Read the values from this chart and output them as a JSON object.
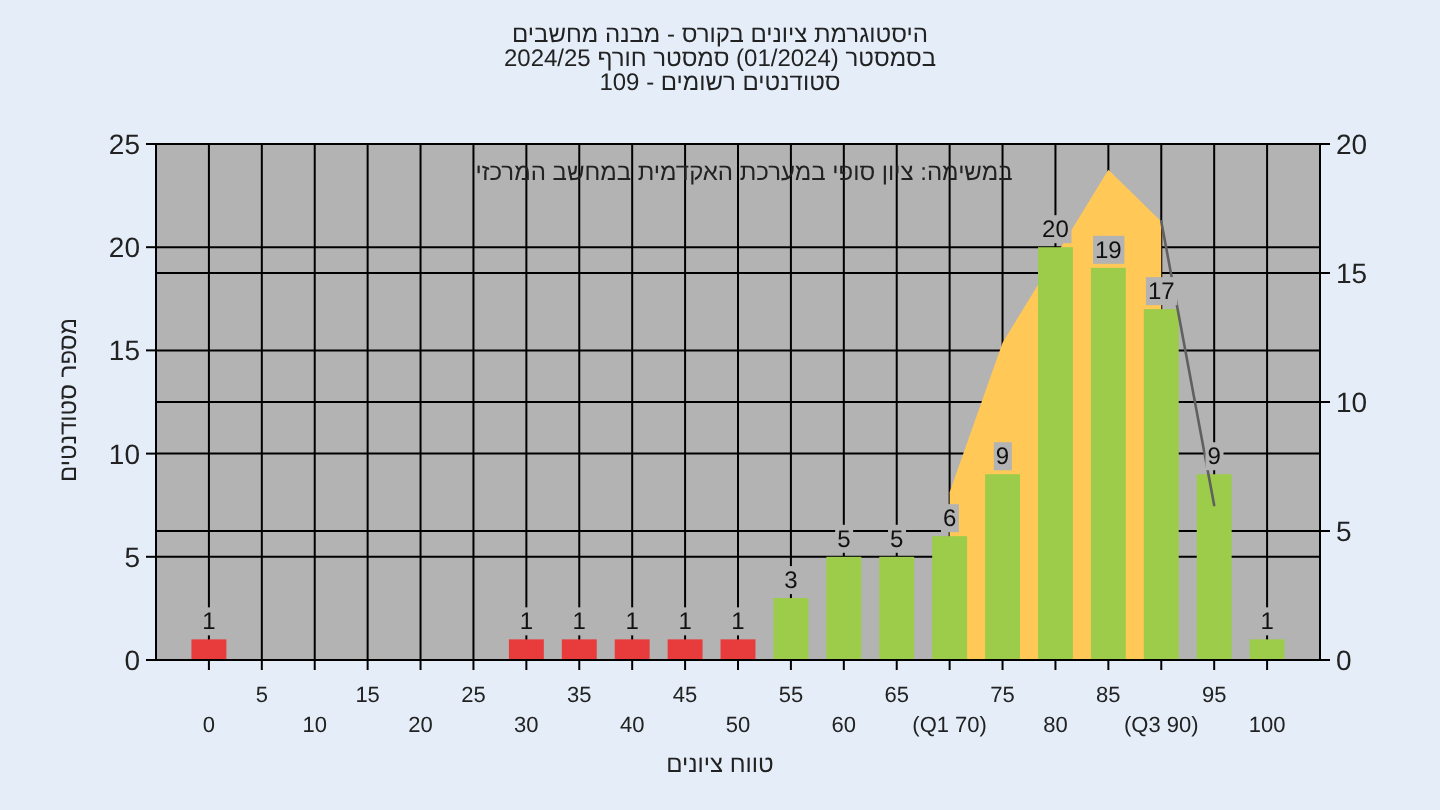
{
  "chart_data": {
    "type": "bar",
    "title": "היסטוגרמת ציונים בקורס - מבנה מחשבים",
    "subtitle": "בסמסטר  (01/2024)  סמסטר חורף 2024/25",
    "annotations": [
      "סטודנטים רשומים - 109",
      "במשימה: ציון סופי במערכת האקדמית במחשב המרכזי"
    ],
    "xlabel": "טווח ציונים",
    "ylabel": "מספר סטודנטים",
    "categories": [
      "0",
      "5",
      "10",
      "15",
      "20",
      "25",
      "30",
      "35",
      "40",
      "45",
      "50",
      "55",
      "60",
      "65",
      "(Q1 70)",
      "75",
      "80",
      "85",
      "(Q3 90)",
      "95",
      "100"
    ],
    "ylim": [
      0,
      25
    ],
    "yticks": [
      0,
      5,
      10,
      15,
      20,
      25
    ],
    "y2lim": [
      0,
      20
    ],
    "y2ticks": [
      0,
      5,
      10,
      15,
      20
    ],
    "grid": true,
    "series": [
      {
        "colors": [
          "#e83b3b",
          "#e83b3b",
          "#e83b3b",
          "#e83b3b",
          "#e83b3b",
          "#e83b3b",
          "#e83b3b",
          "#e83b3b",
          "#e83b3b",
          "#e83b3b",
          "#e83b3b",
          "#9ccc4a",
          "#9ccc4a",
          "#9ccc4a",
          "#9ccc4a",
          "#9ccc4a",
          "#9ccc4a",
          "#9ccc4a",
          "#9ccc4a",
          "#9ccc4a",
          "#9ccc4a"
        ],
        "values": [
          1,
          0,
          0,
          0,
          0,
          0,
          1,
          1,
          1,
          1,
          1,
          3,
          5,
          5,
          6,
          9,
          20,
          19,
          17,
          9,
          1
        ],
        "value_labels": [
          "1",
          null,
          null,
          null,
          null,
          null,
          "1",
          "1",
          "1",
          "1",
          "1",
          "3",
          "5",
          "5",
          "6",
          "9",
          "20",
          "19",
          "17",
          "9",
          "1"
        ]
      },
      {
        "type": "area",
        "axis": "y2",
        "color": "#ffc857",
        "values": [
          null,
          null,
          null,
          null,
          null,
          null,
          null,
          null,
          null,
          null,
          null,
          null,
          null,
          null,
          6.5,
          12.3,
          null,
          19,
          17,
          null,
          null
        ]
      },
      {
        "type": "line",
        "axis": "y2",
        "color": "#606060",
        "values": [
          null,
          null,
          null,
          null,
          null,
          null,
          null,
          null,
          null,
          null,
          null,
          null,
          null,
          null,
          null,
          null,
          null,
          null,
          17,
          6,
          null
        ]
      }
    ]
  }
}
